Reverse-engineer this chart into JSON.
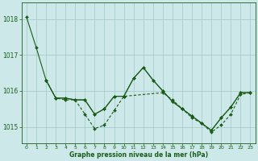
{
  "bg_color": "#cce8e8",
  "grid_color": "#aacccc",
  "line_color": "#1a5c1a",
  "title": "Graphe pression niveau de la mer (hPa)",
  "xlim": [
    -0.5,
    23.5
  ],
  "ylim": [
    1014.55,
    1018.45
  ],
  "yticks": [
    1015,
    1016,
    1017,
    1018
  ],
  "xticks": [
    0,
    1,
    2,
    3,
    4,
    5,
    6,
    7,
    8,
    9,
    10,
    11,
    12,
    13,
    14,
    15,
    16,
    17,
    18,
    19,
    20,
    21,
    22,
    23
  ],
  "series1_x": [
    0,
    1,
    2,
    3,
    4,
    5,
    6,
    7,
    8,
    9,
    10,
    11,
    12,
    13,
    14,
    15,
    16,
    17,
    18,
    19,
    20,
    21,
    22,
    23
  ],
  "series1_y": [
    1018.05,
    1017.2,
    1016.3,
    1015.8,
    1015.8,
    1015.75,
    1015.75,
    1015.35,
    1015.5,
    1015.85,
    1015.85,
    1016.35,
    1016.65,
    1016.3,
    1016.0,
    1015.7,
    1015.5,
    1015.3,
    1015.1,
    1014.9,
    1015.25,
    1015.55,
    1015.95,
    1015.95
  ],
  "series2_x": [
    2,
    3,
    4,
    5,
    6,
    7,
    8,
    9,
    10,
    11,
    12,
    13,
    14,
    15,
    16,
    17,
    18,
    19,
    20,
    21,
    22,
    23
  ],
  "series2_y": [
    1016.3,
    1015.8,
    1015.8,
    1015.75,
    1015.75,
    1015.35,
    1015.5,
    1015.85,
    1015.85,
    1016.35,
    1016.65,
    1016.3,
    1016.0,
    1015.7,
    1015.5,
    1015.3,
    1015.1,
    1014.9,
    1015.25,
    1015.55,
    1015.95,
    1015.95
  ],
  "series3_x": [
    2,
    3,
    4,
    5,
    6,
    7,
    8,
    9,
    10,
    14,
    15,
    16,
    17,
    18,
    19,
    20,
    21,
    22,
    23
  ],
  "series3_y": [
    1016.3,
    1015.8,
    1015.75,
    1015.75,
    1015.35,
    1014.95,
    1015.05,
    1015.45,
    1015.85,
    1015.95,
    1015.75,
    1015.5,
    1015.25,
    1015.1,
    1014.85,
    1015.05,
    1015.35,
    1015.9,
    1015.95
  ]
}
